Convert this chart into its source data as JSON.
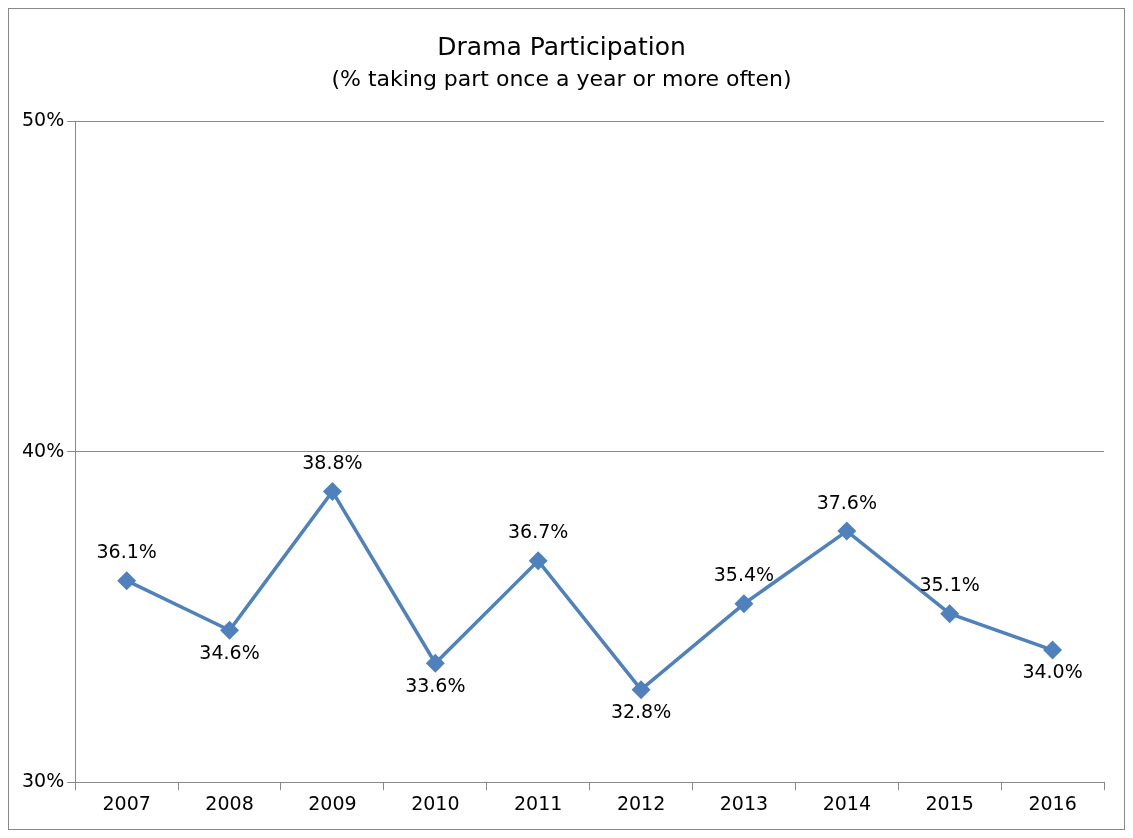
{
  "chart_data": {
    "type": "line",
    "title": "Drama Participation",
    "subtitle": "(% taking part once a year or more often)",
    "categories": [
      "2007",
      "2008",
      "2009",
      "2010",
      "2011",
      "2012",
      "2013",
      "2014",
      "2015",
      "2016"
    ],
    "series": [
      {
        "color": "#4f81bd",
        "values": [
          36.1,
          34.6,
          38.8,
          33.6,
          36.7,
          32.8,
          35.4,
          37.6,
          35.1,
          34.0
        ],
        "value_labels": [
          "36.1%",
          "34.6%",
          "38.8%",
          "33.6%",
          "36.7%",
          "32.8%",
          "35.4%",
          "37.6%",
          "35.1%",
          "34.0%"
        ]
      }
    ],
    "ylim": [
      30,
      50
    ],
    "yticks": [
      {
        "value": 30,
        "label": "30%"
      },
      {
        "value": 40,
        "label": "40%"
      },
      {
        "value": 50,
        "label": "50%"
      }
    ],
    "grid": "y",
    "legend": false,
    "marker": "diamond",
    "line_style": "solid"
  }
}
